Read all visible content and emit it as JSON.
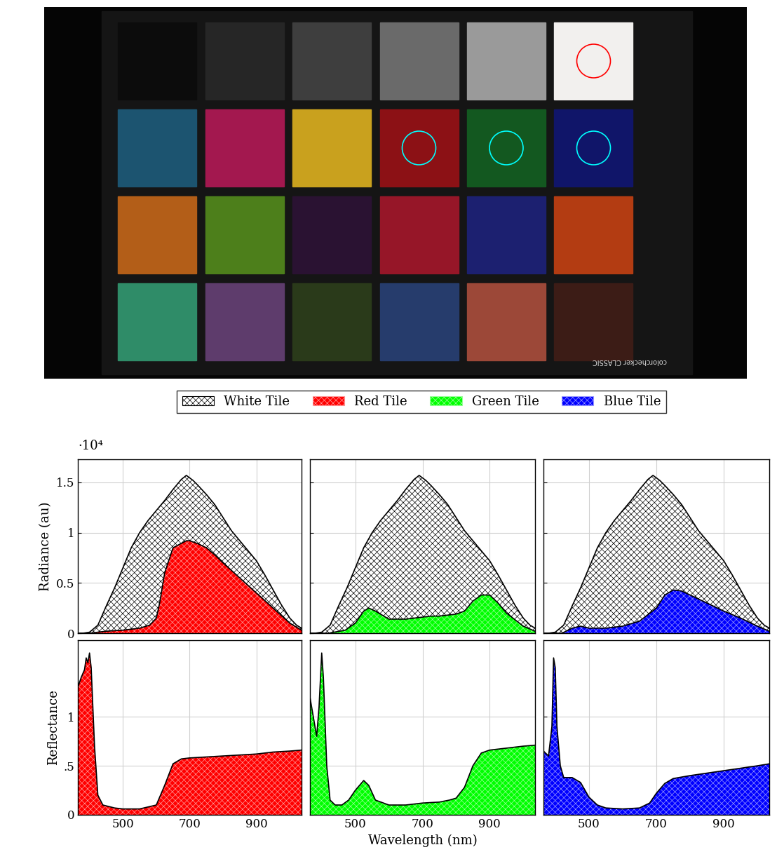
{
  "photo": {
    "label": "colorchecker CLASSIC"
  },
  "chart_data": [
    {
      "type": "area",
      "ylabel": "Radiance (au)",
      "annotation": "·10⁴",
      "xlim": [
        365,
        1035
      ],
      "ylim": [
        0,
        1.73
      ],
      "xticks": [
        500,
        700,
        900
      ],
      "yticks": [
        0,
        0.5,
        1,
        1.5
      ],
      "grid": true,
      "tick_labels": "y",
      "series": [
        {
          "name": "White Tile",
          "color": "#ffffff",
          "x": [
            365,
            380,
            400,
            425,
            450,
            475,
            500,
            525,
            550,
            575,
            600,
            625,
            650,
            675,
            690,
            710,
            725,
            750,
            775,
            800,
            825,
            850,
            875,
            900,
            925,
            950,
            975,
            1000,
            1020,
            1035
          ],
          "values": [
            0,
            0,
            0.01,
            0.08,
            0.27,
            0.45,
            0.65,
            0.85,
            1.0,
            1.12,
            1.22,
            1.32,
            1.43,
            1.53,
            1.57,
            1.52,
            1.47,
            1.38,
            1.28,
            1.15,
            1.02,
            0.92,
            0.82,
            0.72,
            0.58,
            0.43,
            0.28,
            0.15,
            0.08,
            0.05
          ]
        },
        {
          "name": "Red Tile",
          "color": "#ff0000",
          "x": [
            365,
            400,
            450,
            500,
            550,
            580,
            600,
            610,
            625,
            650,
            690,
            700,
            725,
            750,
            775,
            800,
            850,
            900,
            950,
            1000,
            1035
          ],
          "values": [
            0,
            0,
            0.02,
            0.03,
            0.05,
            0.08,
            0.15,
            0.3,
            0.6,
            0.85,
            0.92,
            0.92,
            0.89,
            0.85,
            0.78,
            0.7,
            0.55,
            0.4,
            0.25,
            0.1,
            0.03
          ]
        }
      ]
    },
    {
      "type": "area",
      "xlim": [
        365,
        1035
      ],
      "ylim": [
        0,
        1.73
      ],
      "xticks": [
        500,
        700,
        900
      ],
      "yticks": [
        0,
        0.5,
        1,
        1.5
      ],
      "grid": true,
      "tick_labels": false,
      "series": [
        {
          "name": "White Tile",
          "color": "#ffffff",
          "x": [
            365,
            380,
            400,
            425,
            450,
            475,
            500,
            525,
            550,
            575,
            600,
            625,
            650,
            675,
            690,
            710,
            725,
            750,
            775,
            800,
            825,
            850,
            875,
            900,
            925,
            950,
            975,
            1000,
            1020,
            1035
          ],
          "values": [
            0,
            0,
            0.01,
            0.08,
            0.27,
            0.45,
            0.65,
            0.85,
            1.0,
            1.12,
            1.22,
            1.32,
            1.43,
            1.53,
            1.57,
            1.52,
            1.47,
            1.38,
            1.28,
            1.15,
            1.02,
            0.92,
            0.82,
            0.72,
            0.58,
            0.43,
            0.28,
            0.15,
            0.08,
            0.05
          ]
        },
        {
          "name": "Green Tile",
          "color": "#00ff00",
          "x": [
            365,
            420,
            470,
            500,
            525,
            540,
            560,
            600,
            650,
            700,
            725,
            750,
            800,
            825,
            850,
            875,
            900,
            925,
            950,
            1000,
            1035
          ],
          "values": [
            0,
            0,
            0.03,
            0.1,
            0.22,
            0.25,
            0.22,
            0.14,
            0.14,
            0.16,
            0.17,
            0.17,
            0.19,
            0.22,
            0.32,
            0.38,
            0.38,
            0.3,
            0.2,
            0.07,
            0.02
          ]
        }
      ]
    },
    {
      "type": "area",
      "xlim": [
        365,
        1035
      ],
      "ylim": [
        0,
        1.73
      ],
      "xticks": [
        500,
        700,
        900
      ],
      "yticks": [
        0,
        0.5,
        1,
        1.5
      ],
      "grid": true,
      "tick_labels": false,
      "series": [
        {
          "name": "White Tile",
          "color": "#ffffff",
          "x": [
            365,
            380,
            400,
            425,
            450,
            475,
            500,
            525,
            550,
            575,
            600,
            625,
            650,
            675,
            690,
            710,
            725,
            750,
            775,
            800,
            825,
            850,
            875,
            900,
            925,
            950,
            975,
            1000,
            1020,
            1035
          ],
          "values": [
            0,
            0,
            0.01,
            0.08,
            0.27,
            0.45,
            0.65,
            0.85,
            1.0,
            1.12,
            1.22,
            1.32,
            1.43,
            1.53,
            1.57,
            1.52,
            1.47,
            1.38,
            1.28,
            1.15,
            1.02,
            0.92,
            0.82,
            0.72,
            0.58,
            0.43,
            0.28,
            0.15,
            0.08,
            0.05
          ]
        },
        {
          "name": "Blue Tile",
          "color": "#0000ff",
          "x": [
            365,
            420,
            450,
            475,
            500,
            550,
            600,
            650,
            700,
            725,
            750,
            775,
            800,
            850,
            900,
            950,
            1000,
            1035
          ],
          "values": [
            0,
            0,
            0.05,
            0.07,
            0.05,
            0.05,
            0.07,
            0.12,
            0.25,
            0.38,
            0.43,
            0.42,
            0.38,
            0.3,
            0.22,
            0.15,
            0.07,
            0.02
          ]
        }
      ]
    },
    {
      "type": "area",
      "ylabel": "Reflectance",
      "xlim": [
        365,
        1035
      ],
      "ylim": [
        0,
        1.78
      ],
      "xticks": [
        500,
        700,
        900
      ],
      "yticks": [
        0,
        {
          "value": 0.5,
          "label": ".5"
        },
        1
      ],
      "grid": true,
      "tick_labels": true,
      "series": [
        {
          "name": "Red Tile",
          "color": "#ff0000",
          "x": [
            365,
            375,
            385,
            390,
            395,
            400,
            405,
            415,
            425,
            440,
            475,
            500,
            550,
            600,
            625,
            650,
            675,
            700,
            800,
            900,
            950,
            1000,
            1035
          ],
          "values": [
            1.3,
            1.4,
            1.48,
            1.6,
            1.55,
            1.65,
            1.5,
            0.7,
            0.2,
            0.1,
            0.07,
            0.06,
            0.06,
            0.1,
            0.3,
            0.52,
            0.57,
            0.58,
            0.6,
            0.62,
            0.64,
            0.65,
            0.66
          ]
        }
      ]
    },
    {
      "type": "area",
      "xlabel": "Wavelength (nm)",
      "xlim": [
        365,
        1035
      ],
      "ylim": [
        0,
        1.78
      ],
      "xticks": [
        500,
        700,
        900
      ],
      "yticks": [
        0,
        {
          "value": 0.5,
          "label": ".5"
        },
        1
      ],
      "grid": true,
      "tick_labels": "x",
      "series": [
        {
          "name": "Green Tile",
          "color": "#00ff00",
          "x": [
            365,
            375,
            385,
            392,
            400,
            405,
            415,
            425,
            440,
            460,
            480,
            500,
            525,
            540,
            560,
            600,
            650,
            700,
            750,
            780,
            800,
            825,
            850,
            875,
            900,
            950,
            1000,
            1035
          ],
          "values": [
            1.2,
            1.0,
            0.8,
            1.1,
            1.65,
            1.4,
            0.5,
            0.15,
            0.1,
            0.1,
            0.15,
            0.25,
            0.35,
            0.3,
            0.15,
            0.1,
            0.1,
            0.12,
            0.13,
            0.15,
            0.17,
            0.28,
            0.5,
            0.63,
            0.66,
            0.68,
            0.7,
            0.71
          ]
        }
      ]
    },
    {
      "type": "area",
      "xlim": [
        365,
        1035
      ],
      "ylim": [
        0,
        1.78
      ],
      "xticks": [
        500,
        700,
        900
      ],
      "yticks": [
        0,
        {
          "value": 0.5,
          "label": ".5"
        },
        1
      ],
      "grid": true,
      "tick_labels": "x",
      "series": [
        {
          "name": "Blue Tile",
          "color": "#0000ff",
          "x": [
            365,
            380,
            390,
            395,
            400,
            405,
            415,
            425,
            450,
            475,
            500,
            525,
            550,
            600,
            650,
            680,
            700,
            725,
            750,
            800,
            900,
            1000,
            1035
          ],
          "values": [
            0.65,
            0.6,
            0.9,
            1.6,
            1.5,
            0.9,
            0.5,
            0.38,
            0.38,
            0.33,
            0.18,
            0.1,
            0.07,
            0.06,
            0.07,
            0.12,
            0.22,
            0.32,
            0.37,
            0.4,
            0.45,
            0.5,
            0.52
          ]
        }
      ]
    }
  ]
}
